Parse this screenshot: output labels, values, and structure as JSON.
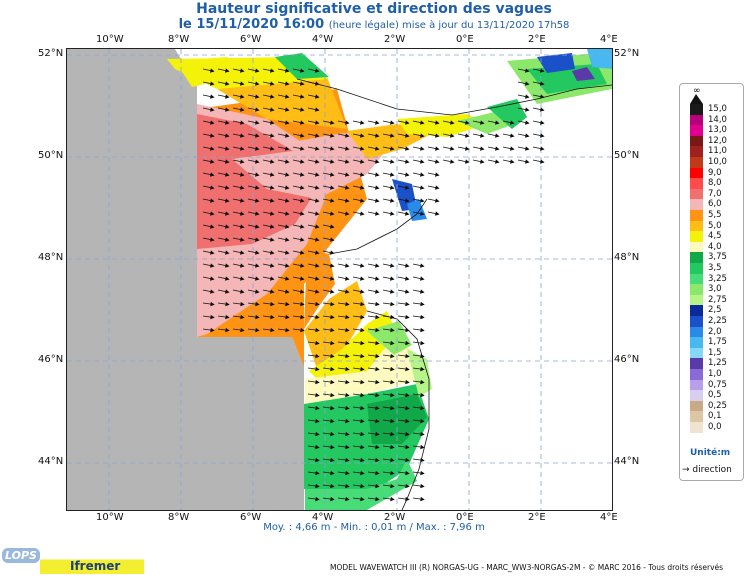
{
  "title": "Hauteur significative et direction des vagues",
  "subtitle_main": "le 15/11/2020 16:00",
  "subtitle_extra": "(heure légale) mise à jour du 13/11/2020 17h58",
  "axes": {
    "lon_ticks": [
      "10°W",
      "8°W",
      "6°W",
      "4°W",
      "2°W",
      "0°E",
      "2°E",
      "4°E"
    ],
    "lat_ticks": [
      "52°N",
      "50°N",
      "48°N",
      "46°N",
      "44°N"
    ]
  },
  "stats": "Moy. : 4,66 m   -   Min. : 0,01 m / Max. : 7,96 m",
  "legend": {
    "top_symbol": "∞",
    "entries": [
      {
        "label": "15,0",
        "color": "#1a1a1a"
      },
      {
        "label": "14,0",
        "color": "#b8007a"
      },
      {
        "label": "13,0",
        "color": "#e00090"
      },
      {
        "label": "12,0",
        "color": "#7a1818"
      },
      {
        "label": "11,0",
        "color": "#a02020"
      },
      {
        "label": "10,0",
        "color": "#c03a1a"
      },
      {
        "label": "9,0",
        "color": "#ff0000"
      },
      {
        "label": "8,0",
        "color": "#ff4b4b"
      },
      {
        "label": "7,0",
        "color": "#f07070"
      },
      {
        "label": "6,0",
        "color": "#f4b6b6"
      },
      {
        "label": "5,5",
        "color": "#ff9414"
      },
      {
        "label": "5,0",
        "color": "#ffbd15"
      },
      {
        "label": "4,5",
        "color": "#f5f20a"
      },
      {
        "label": "4,0",
        "color": "#fffac0"
      },
      {
        "label": "3,75",
        "color": "#10a848"
      },
      {
        "label": "3,5",
        "color": "#24c860"
      },
      {
        "label": "3,25",
        "color": "#48dc78"
      },
      {
        "label": "3,0",
        "color": "#8ce86a"
      },
      {
        "label": "2,75",
        "color": "#b6f48a"
      },
      {
        "label": "2,5",
        "color": "#0a2a9a"
      },
      {
        "label": "2,25",
        "color": "#1a50c8"
      },
      {
        "label": "2,0",
        "color": "#2a8ae8"
      },
      {
        "label": "1,75",
        "color": "#48b8f0"
      },
      {
        "label": "1,5",
        "color": "#86d8f8"
      },
      {
        "label": "1,25",
        "color": "#5a3aa8"
      },
      {
        "label": "1,0",
        "color": "#8a6ad8"
      },
      {
        "label": "0,75",
        "color": "#b8a0e8"
      },
      {
        "label": "0,5",
        "color": "#d8cef0"
      },
      {
        "label": "0,25",
        "color": "#c8aa86"
      },
      {
        "label": "0,1",
        "color": "#dcc6a6"
      },
      {
        "label": "0,0",
        "color": "#efe4d2"
      }
    ],
    "unit": "Unité:m",
    "direction_label": "direction"
  },
  "footer": "MODEL WAVEWATCH III (R) NORGAS-UG - MARC_WW3-NORGAS-2M - © MARC 2016 - Tous droits réservés",
  "logos": {
    "left": "LOPS",
    "right": "Ifremer"
  },
  "colors": {
    "land": "#ffffff",
    "nodata": "#b5b5b5",
    "grid": "#8aa2d8"
  }
}
